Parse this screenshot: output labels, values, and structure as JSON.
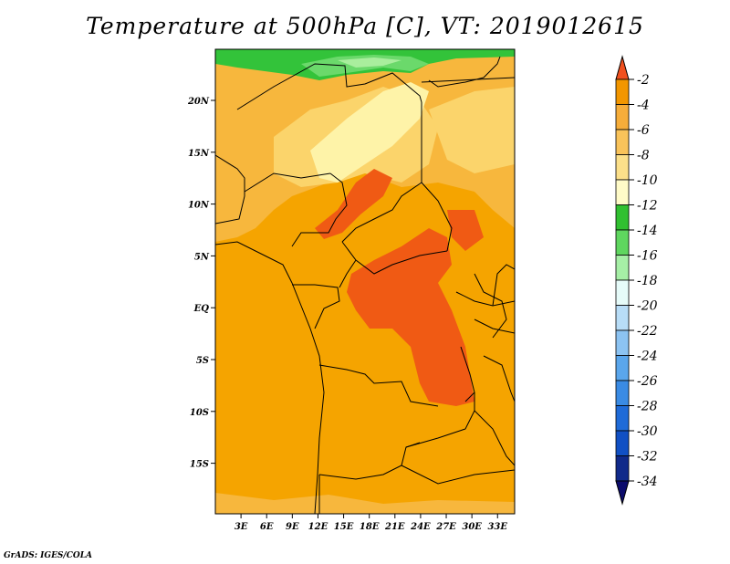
{
  "title": "Temperature at 500hPa [C], VT: 2019012615",
  "credit": "GrADS: IGES/COLA",
  "map": {
    "lon_range": [
      0,
      35
    ],
    "lat_range": [
      -20,
      25
    ],
    "x_ticks": [
      "3E",
      "6E",
      "9E",
      "12E",
      "15E",
      "18E",
      "21E",
      "24E",
      "27E",
      "30E",
      "33E"
    ],
    "y_ticks": [
      "20N",
      "15N",
      "10N",
      "5N",
      "EQ",
      "5S",
      "10S",
      "15S"
    ],
    "colors": {
      "t_m2": "#f05a14",
      "t_m4": "#f5a400",
      "t_m6": "#f7b73d",
      "t_m8": "#fbd46b",
      "t_m10": "#fef3a8",
      "t_m12": "#33c33a",
      "t_m14": "#6bd96b",
      "t_m16": "#a9ee9d"
    }
  },
  "colorbar": {
    "labels": [
      "-2",
      "-4",
      "-6",
      "-8",
      "-10",
      "-12",
      "-14",
      "-16",
      "-18",
      "-20",
      "-22",
      "-24",
      "-26",
      "-28",
      "-30",
      "-32",
      "-34"
    ],
    "colors": [
      "#f0501e",
      "#f29600",
      "#f6ad3a",
      "#f9c35a",
      "#fce08a",
      "#fffbc8",
      "#31c031",
      "#5fd65f",
      "#a6efa6",
      "#e6fbf9",
      "#b8ddf7",
      "#8cc3f2",
      "#5aa6ec",
      "#3a8be4",
      "#1f6bd8",
      "#1150c4",
      "#102a8a",
      "#0c0c6c"
    ]
  }
}
